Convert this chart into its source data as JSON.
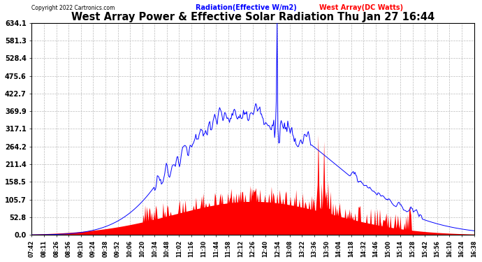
{
  "title": "West Array Power & Effective Solar Radiation Thu Jan 27 16:44",
  "copyright": "Copyright 2022 Cartronics.com",
  "legend_radiation": "Radiation(Effective W/m2)",
  "legend_west": "West Array(DC Watts)",
  "radiation_color": "blue",
  "west_color": "red",
  "background_color": "white",
  "grid_color": "#bbbbbb",
  "ymin": 0.0,
  "ymax": 634.1,
  "yticks": [
    0.0,
    52.8,
    105.7,
    158.5,
    211.4,
    264.2,
    317.1,
    369.9,
    422.7,
    475.6,
    528.4,
    581.3,
    634.1
  ],
  "x_labels": [
    "07:42",
    "08:11",
    "08:26",
    "08:56",
    "09:10",
    "09:24",
    "09:38",
    "09:52",
    "10:06",
    "10:20",
    "10:34",
    "10:48",
    "11:02",
    "11:16",
    "11:30",
    "11:44",
    "11:58",
    "12:12",
    "12:26",
    "12:40",
    "12:54",
    "13:08",
    "13:22",
    "13:36",
    "13:50",
    "14:04",
    "14:18",
    "14:32",
    "14:46",
    "15:00",
    "15:14",
    "15:28",
    "15:42",
    "15:56",
    "16:10",
    "16:24",
    "16:38"
  ]
}
